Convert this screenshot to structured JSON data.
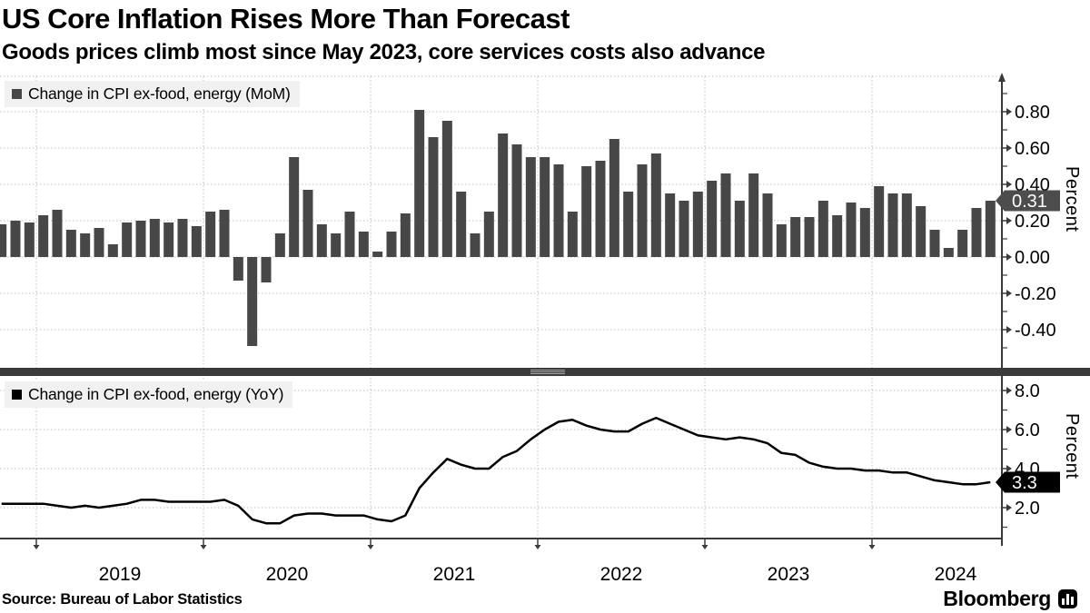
{
  "header": {
    "title": "US Core Inflation Rises More Than Forecast",
    "subtitle": "Goods prices climb most since May 2023, core services costs also advance"
  },
  "source_text": "Source: Bureau of Labor Statistics",
  "brand": {
    "name": "Bloomberg",
    "icon": "bar-chart-bubble-icon"
  },
  "colors": {
    "bar": "#474747",
    "line": "#000000",
    "grid": "#bfbfbf",
    "axis": "#3a3a3a",
    "divider": "#3a3a3a",
    "tag_top_bg": "#4d4d4d",
    "tag_bottom_bg": "#000000",
    "tag_text": "#ffffff",
    "legend_bg": "#f1f1f1"
  },
  "panels": {
    "top_legend": "Change in CPI ex-food, energy (MoM)",
    "bottom_legend": "Change in CPI ex-food, energy (YoY)",
    "top_unit": "Percent",
    "bottom_unit": "Percent"
  },
  "axis": {
    "years": [
      "2019",
      "2020",
      "2021",
      "2022",
      "2023",
      "2024"
    ]
  },
  "chart_data": [
    {
      "type": "bar",
      "name": "core-cpi-mom",
      "legend": "Change in CPI ex-food, energy (MoM)",
      "ylabel": "Percent",
      "yticks_major": [
        0.8,
        0.6,
        0.4,
        0.2,
        0.0,
        -0.2,
        -0.4
      ],
      "ytick_labels": [
        "0.80",
        "0.60",
        "0.40",
        "0.20",
        "0.00",
        "-0.20",
        "-0.40"
      ],
      "yticks_minor": [
        0.9,
        0.7,
        0.5,
        0.3,
        0.1,
        -0.1,
        -0.3,
        -0.5
      ],
      "ylim": [
        -0.61,
        1.0
      ],
      "grid": true,
      "legend_position": "top-left",
      "latest": {
        "label": "0.31",
        "value": 0.31
      },
      "x": [
        "2018-10",
        "2018-11",
        "2018-12",
        "2019-01",
        "2019-02",
        "2019-03",
        "2019-04",
        "2019-05",
        "2019-06",
        "2019-07",
        "2019-08",
        "2019-09",
        "2019-10",
        "2019-11",
        "2019-12",
        "2020-01",
        "2020-02",
        "2020-03",
        "2020-04",
        "2020-05",
        "2020-06",
        "2020-07",
        "2020-08",
        "2020-09",
        "2020-10",
        "2020-11",
        "2020-12",
        "2021-01",
        "2021-02",
        "2021-03",
        "2021-04",
        "2021-05",
        "2021-06",
        "2021-07",
        "2021-08",
        "2021-09",
        "2021-10",
        "2021-11",
        "2021-12",
        "2022-01",
        "2022-02",
        "2022-03",
        "2022-04",
        "2022-05",
        "2022-06",
        "2022-07",
        "2022-08",
        "2022-09",
        "2022-10",
        "2022-11",
        "2022-12",
        "2023-01",
        "2023-02",
        "2023-03",
        "2023-04",
        "2023-05",
        "2023-06",
        "2023-07",
        "2023-08",
        "2023-09",
        "2023-10",
        "2023-11",
        "2023-12",
        "2024-01",
        "2024-02",
        "2024-03",
        "2024-04",
        "2024-05",
        "2024-06",
        "2024-07",
        "2024-08",
        "2024-09"
      ],
      "values": [
        0.18,
        0.2,
        0.19,
        0.23,
        0.26,
        0.15,
        0.13,
        0.16,
        0.07,
        0.19,
        0.2,
        0.21,
        0.19,
        0.21,
        0.17,
        0.25,
        0.26,
        -0.13,
        -0.49,
        -0.14,
        0.13,
        0.55,
        0.37,
        0.18,
        0.13,
        0.25,
        0.14,
        0.03,
        0.14,
        0.24,
        0.81,
        0.66,
        0.75,
        0.36,
        0.13,
        0.25,
        0.68,
        0.62,
        0.55,
        0.55,
        0.51,
        0.25,
        0.5,
        0.53,
        0.65,
        0.36,
        0.51,
        0.57,
        0.35,
        0.31,
        0.36,
        0.42,
        0.46,
        0.31,
        0.46,
        0.35,
        0.18,
        0.22,
        0.22,
        0.31,
        0.23,
        0.3,
        0.27,
        0.39,
        0.35,
        0.35,
        0.28,
        0.15,
        0.05,
        0.15,
        0.27,
        0.31
      ]
    },
    {
      "type": "line",
      "name": "core-cpi-yoy",
      "legend": "Change in CPI ex-food, energy (YoY)",
      "ylabel": "Percent",
      "yticks_major": [
        8.0,
        6.0,
        4.0,
        2.0
      ],
      "ytick_labels": [
        "8.0",
        "6.0",
        "4.0",
        "2.0"
      ],
      "yticks_minor": [
        7.0,
        5.0,
        3.0,
        1.0
      ],
      "ylim": [
        0.4,
        8.7
      ],
      "grid": true,
      "legend_position": "top-left",
      "latest": {
        "label": "3.3",
        "value": 3.3
      },
      "x": [
        "2018-10",
        "2018-11",
        "2018-12",
        "2019-01",
        "2019-02",
        "2019-03",
        "2019-04",
        "2019-05",
        "2019-06",
        "2019-07",
        "2019-08",
        "2019-09",
        "2019-10",
        "2019-11",
        "2019-12",
        "2020-01",
        "2020-02",
        "2020-03",
        "2020-04",
        "2020-05",
        "2020-06",
        "2020-07",
        "2020-08",
        "2020-09",
        "2020-10",
        "2020-11",
        "2020-12",
        "2021-01",
        "2021-02",
        "2021-03",
        "2021-04",
        "2021-05",
        "2021-06",
        "2021-07",
        "2021-08",
        "2021-09",
        "2021-10",
        "2021-11",
        "2021-12",
        "2022-01",
        "2022-02",
        "2022-03",
        "2022-04",
        "2022-05",
        "2022-06",
        "2022-07",
        "2022-08",
        "2022-09",
        "2022-10",
        "2022-11",
        "2022-12",
        "2023-01",
        "2023-02",
        "2023-03",
        "2023-04",
        "2023-05",
        "2023-06",
        "2023-07",
        "2023-08",
        "2023-09",
        "2023-10",
        "2023-11",
        "2023-12",
        "2024-01",
        "2024-02",
        "2024-03",
        "2024-04",
        "2024-05",
        "2024-06",
        "2024-07",
        "2024-08",
        "2024-09"
      ],
      "values": [
        2.2,
        2.2,
        2.2,
        2.2,
        2.1,
        2.0,
        2.1,
        2.0,
        2.1,
        2.2,
        2.4,
        2.4,
        2.3,
        2.3,
        2.3,
        2.3,
        2.4,
        2.1,
        1.4,
        1.2,
        1.2,
        1.6,
        1.7,
        1.7,
        1.6,
        1.6,
        1.6,
        1.4,
        1.3,
        1.6,
        3.0,
        3.8,
        4.5,
        4.2,
        4.0,
        4.0,
        4.6,
        4.9,
        5.5,
        6.0,
        6.4,
        6.5,
        6.2,
        6.0,
        5.9,
        5.9,
        6.3,
        6.6,
        6.3,
        6.0,
        5.7,
        5.6,
        5.5,
        5.6,
        5.5,
        5.3,
        4.8,
        4.7,
        4.3,
        4.1,
        4.0,
        4.0,
        3.9,
        3.9,
        3.8,
        3.8,
        3.6,
        3.4,
        3.3,
        3.2,
        3.2,
        3.3
      ]
    }
  ]
}
